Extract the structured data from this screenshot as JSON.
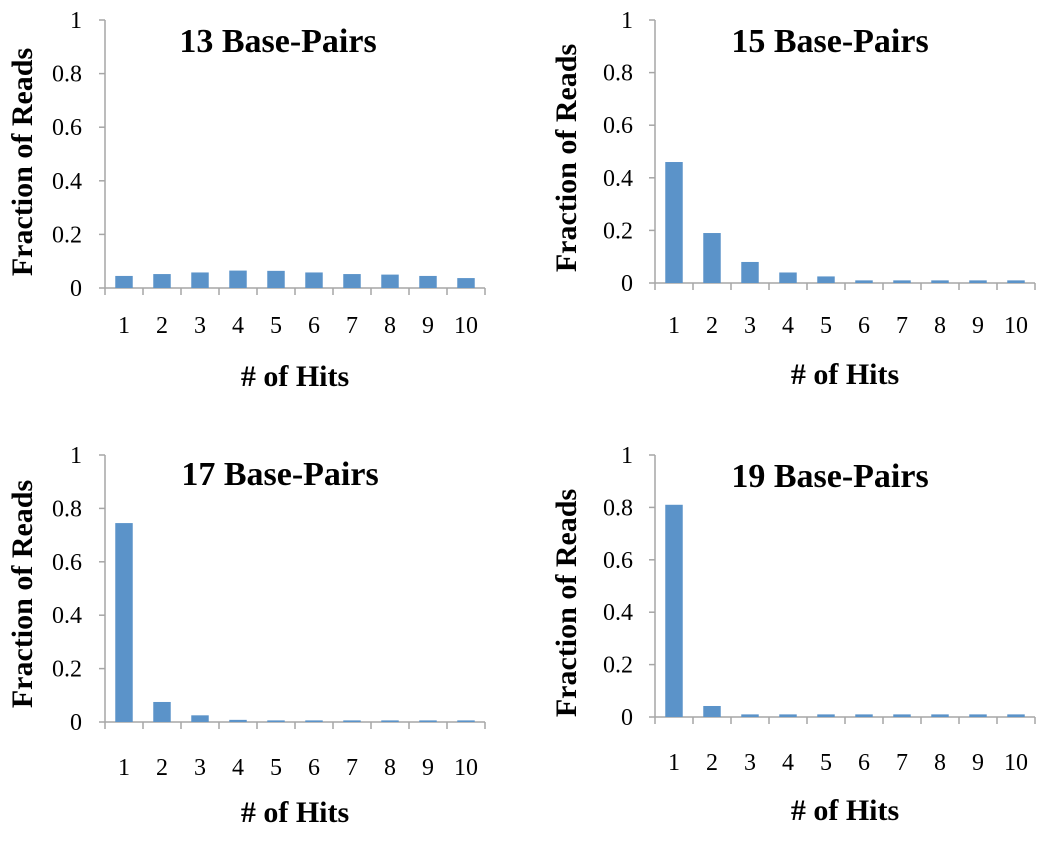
{
  "chart_data": [
    {
      "type": "bar",
      "title": "13 Base-Pairs",
      "xlabel": "# of Hits",
      "ylabel": "Fraction of Reads",
      "categories": [
        "1",
        "2",
        "3",
        "4",
        "5",
        "6",
        "7",
        "8",
        "9",
        "10"
      ],
      "values": [
        0.045,
        0.052,
        0.058,
        0.065,
        0.064,
        0.058,
        0.052,
        0.05,
        0.045,
        0.037
      ],
      "ylim": [
        0,
        1
      ],
      "yticks": [
        "0",
        "0.2",
        "0.4",
        "0.6",
        "0.8",
        "1"
      ],
      "grid": false,
      "bar_color": "#5b93c9"
    },
    {
      "type": "bar",
      "title": "15 Base-Pairs",
      "xlabel": "# of Hits",
      "ylabel": "Fraction of Reads",
      "categories": [
        "1",
        "2",
        "3",
        "4",
        "5",
        "6",
        "7",
        "8",
        "9",
        "10"
      ],
      "values": [
        0.46,
        0.19,
        0.08,
        0.04,
        0.025,
        0.01,
        0.01,
        0.01,
        0.01,
        0.01
      ],
      "ylim": [
        0,
        1
      ],
      "yticks": [
        "0",
        "0.2",
        "0.4",
        "0.6",
        "0.8",
        "1"
      ],
      "grid": false,
      "bar_color": "#5b93c9"
    },
    {
      "type": "bar",
      "title": "17 Base-Pairs",
      "xlabel": "# of Hits",
      "ylabel": "Fraction of Reads",
      "categories": [
        "1",
        "2",
        "3",
        "4",
        "5",
        "6",
        "7",
        "8",
        "9",
        "10"
      ],
      "values": [
        0.745,
        0.075,
        0.025,
        0.008,
        0.006,
        0.006,
        0.006,
        0.006,
        0.006,
        0.006
      ],
      "ylim": [
        0,
        1
      ],
      "yticks": [
        "0",
        "0.2",
        "0.4",
        "0.6",
        "0.8",
        "1"
      ],
      "grid": false,
      "bar_color": "#5b93c9"
    },
    {
      "type": "bar",
      "title": "19 Base-Pairs",
      "xlabel": "# of Hits",
      "ylabel": "Fraction of Reads",
      "categories": [
        "1",
        "2",
        "3",
        "4",
        "5",
        "6",
        "7",
        "8",
        "9",
        "10"
      ],
      "values": [
        0.81,
        0.042,
        0.01,
        0.01,
        0.01,
        0.01,
        0.01,
        0.01,
        0.01,
        0.01
      ],
      "ylim": [
        0,
        1
      ],
      "yticks": [
        "0",
        "0.2",
        "0.4",
        "0.6",
        "0.8",
        "1"
      ],
      "grid": false,
      "bar_color": "#5b93c9"
    }
  ],
  "colors": {
    "bar": "#5b93c9",
    "axis": "#a6a6a6"
  }
}
